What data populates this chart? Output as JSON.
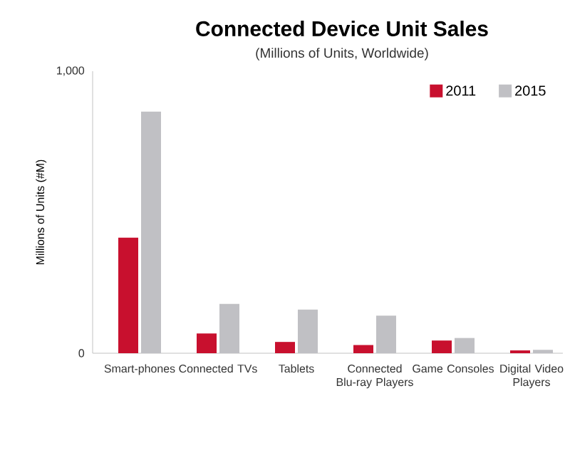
{
  "chart_data": {
    "type": "bar",
    "title": "Connected Device Unit Sales",
    "subtitle": "(Millions of Units, Worldwide)",
    "ylabel": "Millions of Units (#M)",
    "categories": [
      "Smart-phones",
      "Connected TVs",
      "Tablets",
      "Connected Blu-ray Players",
      "Game Consoles",
      "Digital Video Players"
    ],
    "series": [
      {
        "name": "2011",
        "color": "#c8102e",
        "values": [
          410,
          70,
          40,
          29,
          45,
          10
        ]
      },
      {
        "name": "2015",
        "color": "#c0c0c4",
        "values": [
          857,
          175,
          155,
          133,
          54,
          12
        ]
      }
    ],
    "ylim": [
      0,
      1000
    ],
    "yticks": [
      0,
      {
        "value": 1000,
        "label": "1,000"
      }
    ],
    "grid": false,
    "legend": "top right"
  }
}
